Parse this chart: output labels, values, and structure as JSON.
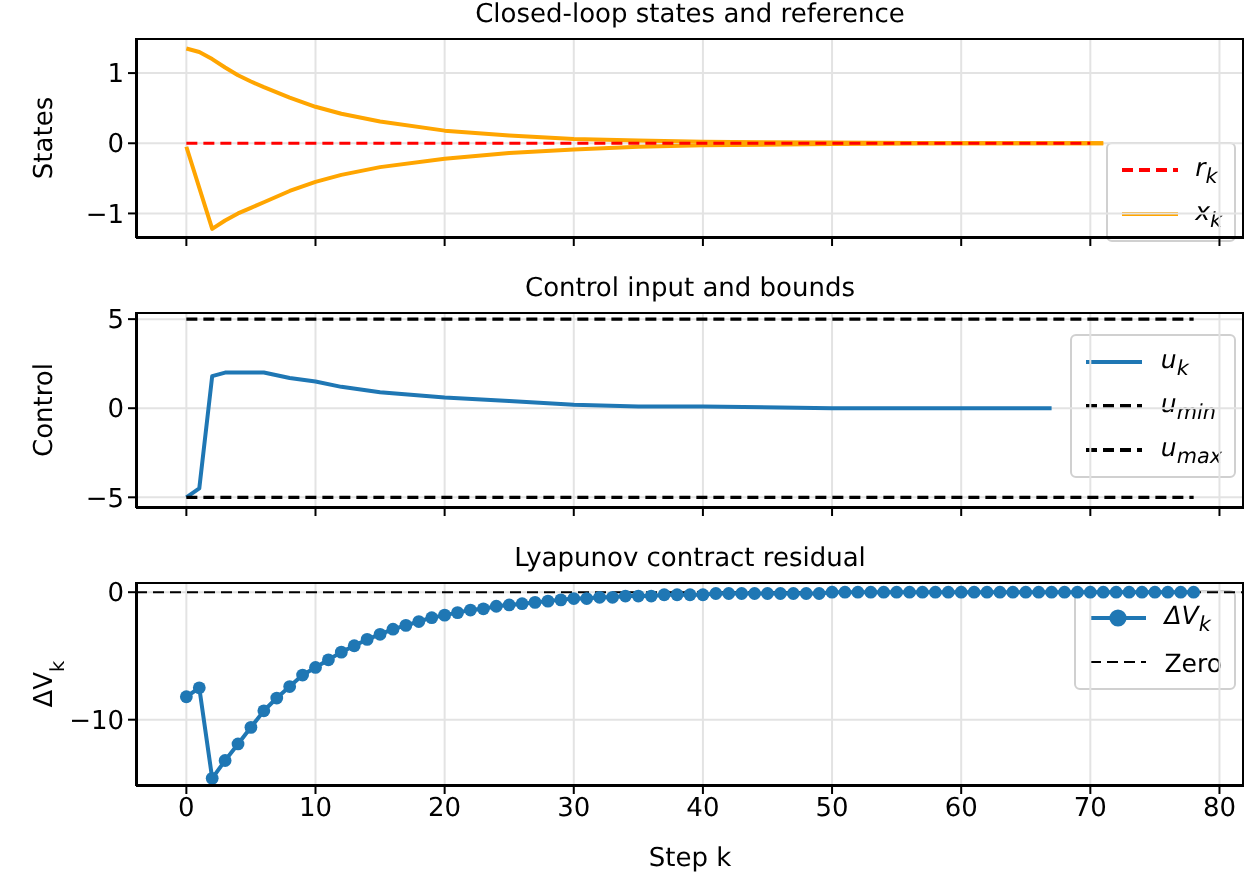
{
  "chart_data": [
    {
      "type": "line",
      "title": "Closed-loop states and reference",
      "ylabel": "States",
      "xlim": [
        -3.9,
        81.9
      ],
      "xticks": [
        0,
        10,
        20,
        30,
        40,
        50,
        60,
        70,
        80
      ],
      "ylim": [
        -1.35,
        1.5
      ],
      "yticks": [
        -1,
        0,
        1
      ],
      "tick_labels": "y",
      "grid": true,
      "legend": "lower right",
      "series": [
        {
          "name": "r$_{k}$",
          "color": "#ff0000",
          "line_style": "dashed",
          "x": [
            0,
            70
          ],
          "values": [
            0,
            0
          ]
        },
        {
          "name": "x$_{k}$",
          "color": "#ffa500",
          "x": [
            0,
            1,
            2,
            3,
            4,
            5,
            6,
            8,
            10,
            12,
            15,
            20,
            25,
            30,
            35,
            40,
            50,
            60,
            71
          ],
          "values": [
            1.35,
            1.3,
            1.2,
            1.08,
            0.97,
            0.88,
            0.8,
            0.65,
            0.52,
            0.42,
            0.31,
            0.18,
            0.11,
            0.06,
            0.04,
            0.02,
            0.01,
            0,
            0
          ]
        },
        {
          "color": "#ffa500",
          "x": [
            0,
            2,
            3,
            4,
            5,
            6,
            8,
            10,
            12,
            15,
            20,
            25,
            30,
            35,
            40,
            50,
            60,
            71
          ],
          "values": [
            -0.05,
            -1.22,
            -1.1,
            -1.0,
            -0.92,
            -0.84,
            -0.68,
            -0.55,
            -0.45,
            -0.34,
            -0.22,
            -0.14,
            -0.09,
            -0.05,
            -0.03,
            -0.01,
            0,
            0
          ]
        }
      ]
    },
    {
      "type": "line",
      "title": "Control input and bounds",
      "ylabel": "Control",
      "xlim": [
        -3.9,
        81.9
      ],
      "xticks": [
        0,
        10,
        20,
        30,
        40,
        50,
        60,
        70,
        80
      ],
      "ylim": [
        -5.6,
        5.4
      ],
      "yticks": [
        -5,
        0,
        5
      ],
      "tick_labels": "y",
      "grid": true,
      "legend": "right",
      "series": [
        {
          "name": "u$_{k}$",
          "color": "#1f77b4",
          "x": [
            0,
            1,
            2,
            3,
            4,
            5,
            6,
            8,
            10,
            12,
            15,
            20,
            25,
            30,
            35,
            40,
            50,
            60,
            67
          ],
          "values": [
            -5,
            -4.5,
            1.8,
            2.0,
            2.0,
            2.0,
            2.0,
            1.7,
            1.5,
            1.2,
            0.9,
            0.6,
            0.4,
            0.2,
            0.1,
            0.1,
            0,
            0,
            0
          ]
        },
        {
          "name": "u$_{min}$",
          "color": "#000000",
          "line_style": "dashed",
          "x": [
            0,
            78
          ],
          "values": [
            -5,
            -5
          ]
        },
        {
          "name": "u$_{max}$",
          "color": "#000000",
          "line_style": "dashed",
          "x": [
            0,
            78
          ],
          "values": [
            5,
            5
          ]
        }
      ]
    },
    {
      "type": "line",
      "title": "Lyapunov contract residual",
      "xlabel": "Step k",
      "ylabel": "ΔV$_{k}$",
      "xlim": [
        -3.9,
        81.9
      ],
      "xticks": [
        0,
        10,
        20,
        30,
        40,
        50,
        60,
        70,
        80
      ],
      "ylim": [
        -15.2,
        0.8
      ],
      "yticks": [
        -10,
        0
      ],
      "grid": true,
      "legend": "upper right",
      "marker": "circle",
      "ref_lines": [
        {
          "axis": "y",
          "value": 0,
          "label": "Zero",
          "color": "#000000",
          "line_style": "dashed"
        }
      ],
      "series": [
        {
          "name": "ΔV$_{k}$",
          "color": "#1f77b4",
          "x": [
            0,
            1,
            2,
            3,
            4,
            5,
            6,
            7,
            8,
            9,
            10,
            11,
            12,
            13,
            14,
            15,
            16,
            17,
            18,
            19,
            20,
            21,
            22,
            23,
            24,
            25,
            26,
            27,
            28,
            29,
            30,
            31,
            32,
            33,
            34,
            35,
            36,
            37,
            38,
            39,
            40,
            41,
            42,
            43,
            44,
            45,
            46,
            47,
            48,
            49,
            50,
            51,
            52,
            53,
            54,
            55,
            56,
            57,
            58,
            59,
            60,
            61,
            62,
            63,
            64,
            65,
            66,
            67,
            68,
            69,
            70,
            71,
            72,
            73,
            74,
            75,
            76,
            77,
            78
          ],
          "values": [
            -8.2,
            -7.5,
            -14.6,
            -13.2,
            -11.9,
            -10.6,
            -9.3,
            -8.3,
            -7.4,
            -6.5,
            -5.9,
            -5.3,
            -4.7,
            -4.2,
            -3.7,
            -3.3,
            -2.9,
            -2.6,
            -2.3,
            -2.0,
            -1.8,
            -1.6,
            -1.4,
            -1.3,
            -1.1,
            -1.0,
            -0.9,
            -0.8,
            -0.7,
            -0.6,
            -0.5,
            -0.5,
            -0.4,
            -0.4,
            -0.3,
            -0.3,
            -0.3,
            -0.2,
            -0.2,
            -0.2,
            -0.2,
            -0.1,
            -0.1,
            -0.1,
            -0.1,
            -0.1,
            -0.1,
            -0.1,
            -0.1,
            -0.1,
            0,
            0,
            0,
            0,
            0,
            0,
            0,
            0,
            0,
            0,
            0,
            0,
            0,
            0,
            0,
            0,
            0,
            0,
            0,
            0,
            0,
            0,
            0,
            0,
            0,
            0,
            0,
            0,
            0
          ]
        }
      ]
    }
  ]
}
